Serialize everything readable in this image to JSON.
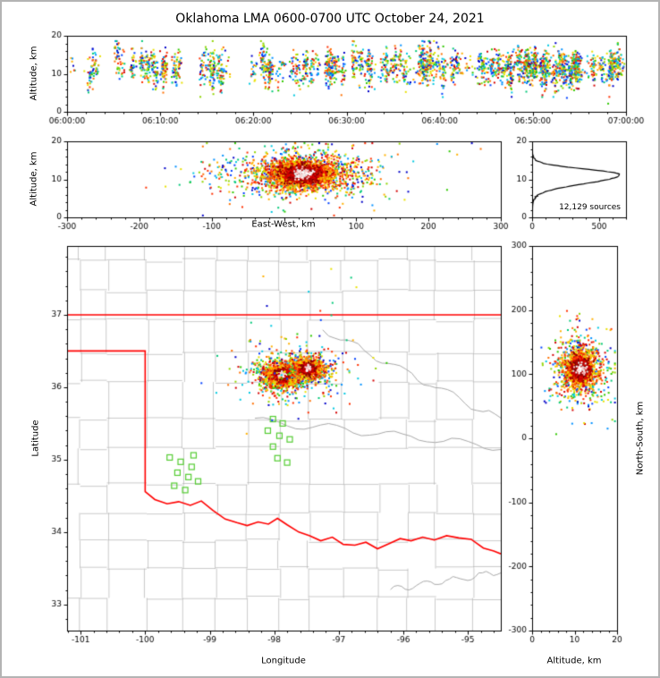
{
  "title": "Oklahoma LMA 0600-0700 UTC October 24, 2021",
  "colors": {
    "frame": "#b4b4b4",
    "axis": "#000000",
    "county": "#b3b3b3",
    "river": "#a8a8a8",
    "state_border": "#ff0000",
    "station": "#55cc33",
    "histogram_line": "#000000",
    "palette": [
      "#0000c8",
      "#0040ff",
      "#0090ff",
      "#00c8e0",
      "#00c878",
      "#30c800",
      "#90d400",
      "#e8e000",
      "#ffb000",
      "#ff7000",
      "#ff3000",
      "#d40000"
    ],
    "core_reds": [
      "#e00000",
      "#b00000",
      "#7c0000"
    ],
    "core_whites": [
      "#ffffff",
      "#e0e0e0",
      "#ffc8c8"
    ]
  },
  "chart_data": [
    {
      "id": "time_height",
      "type": "scatter",
      "ylabel": "Altitude, km",
      "xlim_seconds": [
        0,
        3600
      ],
      "ylim": [
        0,
        20
      ],
      "xticks_seconds": [
        0,
        600,
        1200,
        1800,
        2400,
        3000,
        3600
      ],
      "xtick_labels": [
        "06:00:00",
        "06:10:00",
        "06:20:00",
        "06:30:00",
        "06:40:00",
        "06:50:00",
        "07:00:00"
      ],
      "yticks": [
        0,
        10,
        20
      ],
      "gen": {
        "seed": 11,
        "flashes": 130,
        "alt_mean": 11.5,
        "alt_flash_sd": 1.3,
        "alt_point_sd": 2.2,
        "time_power": 0.75,
        "pts_min": 5,
        "pts_max": 36,
        "extra": 350
      }
    },
    {
      "id": "ew_altitude",
      "type": "scatter",
      "xlabel": "East-West, km",
      "ylabel": "Altitude, km",
      "xlim": [
        -300,
        300
      ],
      "ylim": [
        0,
        20
      ],
      "xticks": [
        -300,
        -200,
        -100,
        0,
        100,
        200,
        300
      ],
      "xtick_labels": [
        "-300",
        "-200",
        "-100",
        "",
        "100",
        "200",
        "300"
      ],
      "yticks": [
        0,
        10,
        20
      ],
      "gen": {
        "seed": 21,
        "x_center": 25,
        "alt_center": 11.4,
        "layers": [
          [
            140,
            95,
            4.2,
            "any"
          ],
          [
            900,
            55,
            3.2,
            "any"
          ],
          [
            1800,
            26,
            1.9,
            "warm"
          ],
          [
            700,
            13,
            1.1,
            "red"
          ],
          [
            90,
            6,
            0.7,
            "white"
          ]
        ]
      }
    },
    {
      "id": "altitude_histogram",
      "type": "line",
      "xlim": [
        0,
        700
      ],
      "ylim": [
        0,
        20
      ],
      "xticks": [
        0,
        500
      ],
      "yticks": [
        0,
        10,
        20
      ],
      "annotation": "12,129 sources",
      "profile": {
        "peak_count": 650,
        "peak_alt": 11.2,
        "sd_below": 2.3,
        "sd_above": 1.5,
        "base": 3,
        "noise_seed": 99
      }
    },
    {
      "id": "plan_view",
      "type": "scatter",
      "xlabel": "Longitude",
      "ylabel": "Latitude",
      "xlim": [
        -101.21,
        -94.49
      ],
      "ylim": [
        32.64,
        37.95
      ],
      "xticks": [
        -101,
        -100,
        -99,
        -98,
        -97,
        -96,
        -95
      ],
      "yticks": [
        33,
        34,
        35,
        36,
        37
      ],
      "gen": {
        "seed": 31,
        "halo": [
          170,
          0.5,
          0.3
        ],
        "halo_center": [
          -97.7,
          36.2
        ],
        "blobs": [
          {
            "lon": -97.88,
            "lat": 36.17,
            "layers": [
              [
                450,
                0.26,
                0.13,
                "any"
              ],
              [
                850,
                0.13,
                0.075,
                "warm"
              ],
              [
                340,
                0.062,
                0.04,
                "red"
              ],
              [
                40,
                0.03,
                0.02,
                "white"
              ]
            ]
          },
          {
            "lon": -97.48,
            "lat": 36.26,
            "layers": [
              [
                350,
                0.22,
                0.12,
                "any"
              ],
              [
                650,
                0.11,
                0.07,
                "warm"
              ],
              [
                260,
                0.055,
                0.038,
                "red"
              ],
              [
                30,
                0.027,
                0.018,
                "white"
              ]
            ]
          }
        ],
        "outliers": 10,
        "outlier_box": [
          -98.4,
          -96.7,
          36.55,
          37.7
        ]
      }
    },
    {
      "id": "ns_altitude",
      "type": "scatter",
      "xlabel": "Altitude, km",
      "ylabel": "North-South, km",
      "xlim": [
        0,
        20
      ],
      "ylim": [
        -300,
        300
      ],
      "xticks": [
        0,
        10,
        20
      ],
      "yticks": [
        -300,
        -200,
        -100,
        0,
        100,
        200,
        300
      ],
      "gen": {
        "seed": 41,
        "ns_center": 108,
        "alt_center": 11.4,
        "layers": [
          [
            120,
            4.2,
            45,
            "any"
          ],
          [
            500,
            3.2,
            26,
            "any"
          ],
          [
            900,
            1.9,
            15,
            "warm"
          ],
          [
            380,
            1.1,
            8,
            "red"
          ],
          [
            45,
            0.7,
            4.5,
            "white"
          ]
        ]
      }
    }
  ],
  "map": {
    "county_gen": {
      "seed": 7,
      "col_step_min": 0.4,
      "col_step_rand": 0.22,
      "row_step_min": 0.36,
      "row_step_rand": 0.16,
      "jitter": 0.035,
      "skip": 0.11
    },
    "rivers_seed": 13,
    "rivers": [
      [
        -98.3,
        35.55,
        -94.49,
        35.18,
        0.05
      ],
      [
        -97.25,
        36.8,
        -94.49,
        35.55,
        0.05
      ],
      [
        -96.2,
        33.2,
        -94.49,
        33.45,
        0.04
      ]
    ],
    "border": {
      "north_lat": 37.0,
      "panhandle_south_lat": 36.5,
      "meridian_lon": -100.0,
      "red_river": [
        [
          -100.0,
          34.56
        ],
        [
          -99.85,
          34.45
        ],
        [
          -99.66,
          34.39
        ],
        [
          -99.48,
          34.42
        ],
        [
          -99.3,
          34.37
        ],
        [
          -99.13,
          34.43
        ],
        [
          -98.95,
          34.3
        ],
        [
          -98.76,
          34.18
        ],
        [
          -98.58,
          34.13
        ],
        [
          -98.42,
          34.09
        ],
        [
          -98.25,
          34.14
        ],
        [
          -98.09,
          34.11
        ],
        [
          -97.95,
          34.19
        ],
        [
          -97.8,
          34.1
        ],
        [
          -97.62,
          34.0
        ],
        [
          -97.45,
          33.95
        ],
        [
          -97.28,
          33.88
        ],
        [
          -97.1,
          33.93
        ],
        [
          -96.93,
          33.83
        ],
        [
          -96.75,
          33.82
        ],
        [
          -96.58,
          33.86
        ],
        [
          -96.4,
          33.77
        ],
        [
          -96.22,
          33.84
        ],
        [
          -96.05,
          33.91
        ],
        [
          -95.88,
          33.88
        ],
        [
          -95.7,
          33.93
        ],
        [
          -95.52,
          33.89
        ],
        [
          -95.33,
          33.95
        ],
        [
          -95.14,
          33.92
        ],
        [
          -94.95,
          33.9
        ],
        [
          -94.76,
          33.78
        ],
        [
          -94.6,
          33.74
        ],
        [
          -94.49,
          33.7
        ]
      ]
    },
    "stations": [
      [
        -99.62,
        35.03
      ],
      [
        -99.45,
        34.97
      ],
      [
        -99.28,
        34.9
      ],
      [
        -99.5,
        34.82
      ],
      [
        -99.33,
        34.76
      ],
      [
        -99.55,
        34.64
      ],
      [
        -99.38,
        34.58
      ],
      [
        -99.18,
        34.7
      ],
      [
        -99.25,
        35.06
      ],
      [
        -98.02,
        35.56
      ],
      [
        -97.87,
        35.5
      ],
      [
        -98.1,
        35.4
      ],
      [
        -97.92,
        35.33
      ],
      [
        -98.02,
        35.18
      ],
      [
        -97.76,
        35.28
      ],
      [
        -97.95,
        35.02
      ],
      [
        -97.8,
        34.96
      ]
    ]
  }
}
